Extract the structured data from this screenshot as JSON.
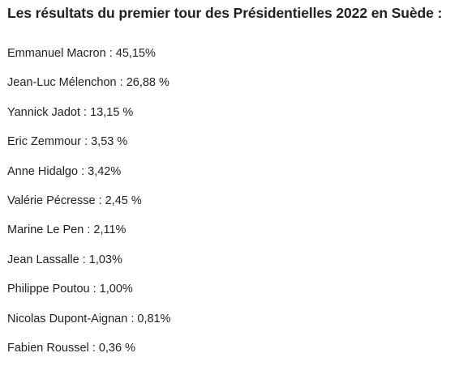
{
  "title": "Les résultats du premier tour des Présidentielles 2022 en Suède :",
  "results": [
    "Emmanuel Macron : 45,15%",
    "Jean-Luc Mélenchon : 26,88 %",
    "Yannick Jadot : 13,15 %",
    "Eric Zemmour : 3,53 %",
    "Anne Hidalgo : 3,42%",
    "Valérie Pécresse : 2,45 %",
    "Marine Le Pen : 2,11%",
    "Jean Lassalle : 1,03%",
    "Philippe Poutou : 1,00%",
    "Nicolas Dupont-Aignan : 0,81%",
    "Fabien Roussel : 0,36 %"
  ]
}
